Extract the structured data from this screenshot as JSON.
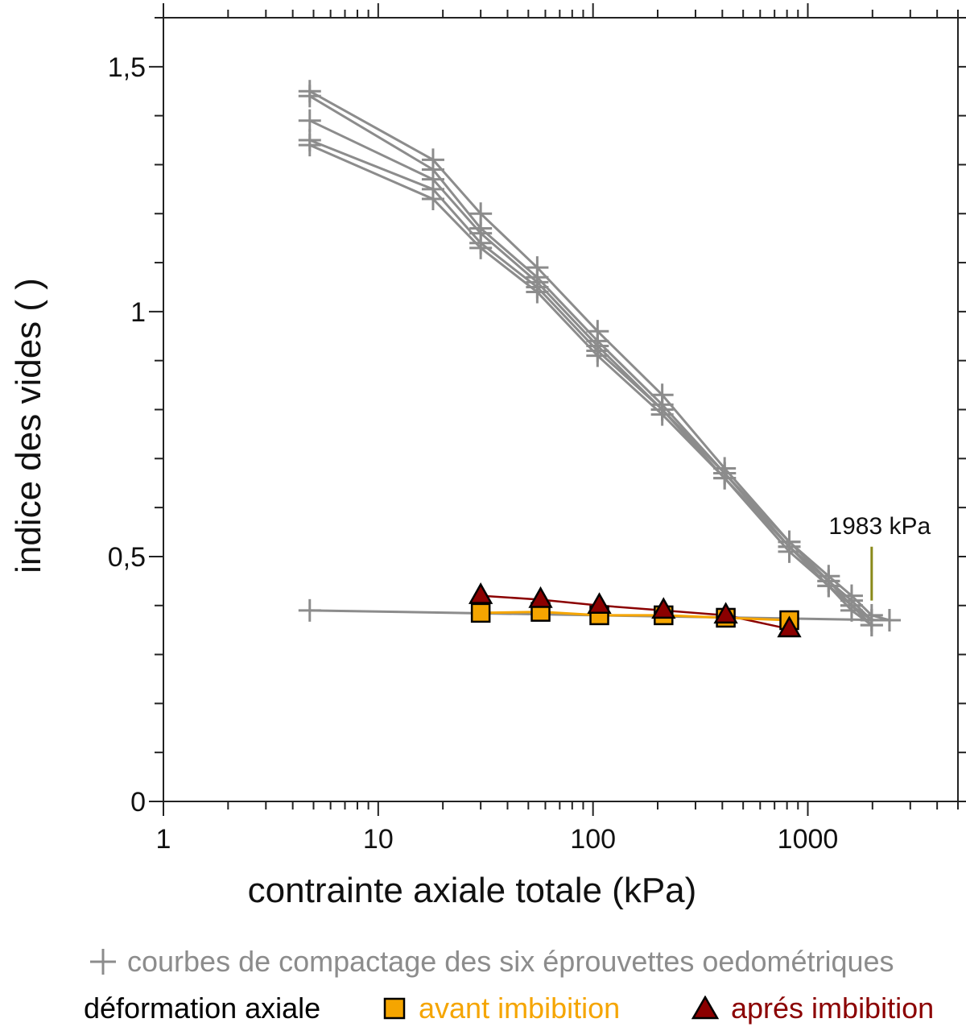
{
  "chart_data": {
    "type": "scatter",
    "xscale": "log",
    "xlim": [
      1,
      5000
    ],
    "ylim": [
      0,
      1.6
    ],
    "xlabel": "contrainte axiale totale (kPa)",
    "ylabel": "indice des vides ( )",
    "xtick_labels": [
      "1",
      "10",
      "100",
      "1000"
    ],
    "xtick_values": [
      1,
      10,
      100,
      1000
    ],
    "ytick_labels": [
      "0",
      "0,5",
      "1",
      "1,5"
    ],
    "ytick_values": [
      0,
      0.5,
      1,
      1.5
    ],
    "grid": false,
    "legend_placement": "bottom",
    "annotation": {
      "text": "1983 kPa",
      "x": 1983,
      "y_from": 0.41,
      "y_to": 0.52,
      "color": "#8a8a1a"
    },
    "colors": {
      "compaction": "#8c8c8c",
      "before": "#f5a500",
      "after": "#8b0000"
    },
    "compaction_curves": [
      {
        "x": [
          4.8,
          18,
          30,
          55,
          105,
          210,
          410,
          820,
          1250,
          1600,
          1983,
          2400
        ],
        "y": [
          1.45,
          1.31,
          1.2,
          1.09,
          0.96,
          0.83,
          0.68,
          0.53,
          0.46,
          0.42,
          0.38,
          0.37
        ]
      },
      {
        "x": [
          4.8,
          18,
          30,
          55,
          105,
          210,
          410,
          820,
          1250,
          1600,
          1983
        ],
        "y": [
          1.44,
          1.29,
          1.17,
          1.07,
          0.94,
          0.81,
          0.67,
          0.53,
          0.45,
          0.41,
          0.37
        ]
      },
      {
        "x": [
          4.8,
          18,
          30,
          55,
          105,
          210,
          410,
          820,
          1250,
          1600,
          1983
        ],
        "y": [
          1.39,
          1.27,
          1.16,
          1.06,
          0.93,
          0.8,
          0.67,
          0.52,
          0.45,
          0.4,
          0.37
        ]
      },
      {
        "x": [
          4.8,
          18,
          30,
          55,
          105,
          210,
          410,
          820,
          1250,
          1600,
          1983
        ],
        "y": [
          1.35,
          1.25,
          1.14,
          1.05,
          0.92,
          0.8,
          0.66,
          0.52,
          0.44,
          0.4,
          0.36
        ]
      },
      {
        "x": [
          4.8,
          18,
          30,
          55,
          105,
          210,
          410,
          820,
          1250,
          1600,
          1983
        ],
        "y": [
          1.34,
          1.23,
          1.13,
          1.04,
          0.91,
          0.79,
          0.66,
          0.51,
          0.44,
          0.39,
          0.36
        ]
      },
      {
        "x": [
          4.8,
          2400
        ],
        "y": [
          0.39,
          0.37
        ]
      }
    ],
    "series": [
      {
        "name": "avant imbibition",
        "marker": "square",
        "x": [
          30,
          57,
          107,
          213,
          415,
          820
        ],
        "y": [
          0.385,
          0.387,
          0.38,
          0.38,
          0.375,
          0.37
        ]
      },
      {
        "name": "aprés imbibition",
        "marker": "triangle",
        "x": [
          30,
          57,
          107,
          213,
          415,
          820
        ],
        "y": [
          0.42,
          0.412,
          0.4,
          0.39,
          0.38,
          0.352
        ]
      }
    ]
  },
  "legend": {
    "compaction_label": "courbes de compactage des six éprouvettes oedométriques",
    "deformation_label": "déformation axiale",
    "before_label": "avant imbibition",
    "after_label": "aprés imbibition"
  }
}
